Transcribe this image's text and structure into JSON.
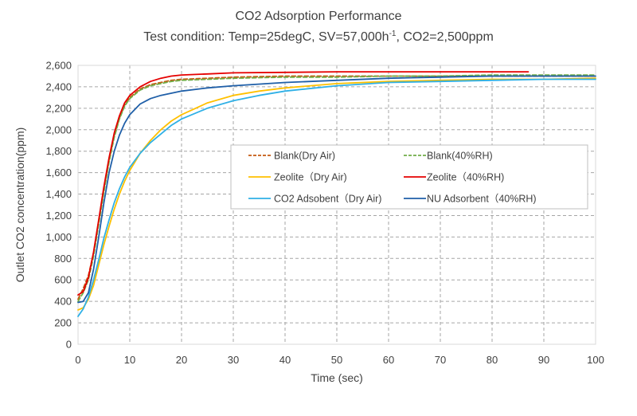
{
  "chart_data": {
    "type": "line",
    "title": "CO2 Adsorption Performance",
    "subtitle_prefix": "Test condition: Temp=25degC, SV=57,000h",
    "subtitle_sup": "-1",
    "subtitle_suffix": ", CO2=2,500ppm",
    "xlabel": "Time (sec)",
    "ylabel": "Outlet CO2 concentration(ppm)",
    "xlim": [
      0,
      100
    ],
    "ylim": [
      0,
      2600
    ],
    "x_ticks": [
      0,
      10,
      20,
      30,
      40,
      50,
      60,
      70,
      80,
      90,
      100
    ],
    "y_ticks": [
      0,
      200,
      400,
      600,
      800,
      1000,
      1200,
      1400,
      1600,
      1800,
      2000,
      2200,
      2400,
      2600
    ],
    "x_tick_labels": [
      "0",
      "10",
      "20",
      "30",
      "40",
      "50",
      "60",
      "70",
      "80",
      "90",
      "100"
    ],
    "y_tick_labels": [
      "0",
      "200",
      "400",
      "600",
      "800",
      "1,000",
      "1,200",
      "1,400",
      "1,600",
      "1,800",
      "2,000",
      "2,200",
      "2,400",
      "2,600"
    ],
    "grid": "dashed",
    "legend_position": "center-right",
    "series": [
      {
        "name": "Blank(Dry Air)",
        "color": "#c55a11",
        "dash": "dashed",
        "points": [
          [
            0,
            420
          ],
          [
            1,
            520
          ],
          [
            2,
            640
          ],
          [
            3,
            850
          ],
          [
            4,
            1150
          ],
          [
            5,
            1450
          ],
          [
            6,
            1720
          ],
          [
            7,
            1950
          ],
          [
            8,
            2110
          ],
          [
            9,
            2230
          ],
          [
            10,
            2300
          ],
          [
            12,
            2380
          ],
          [
            14,
            2420
          ],
          [
            16,
            2440
          ],
          [
            18,
            2460
          ],
          [
            20,
            2470
          ],
          [
            25,
            2480
          ],
          [
            30,
            2490
          ],
          [
            40,
            2500
          ],
          [
            50,
            2500
          ],
          [
            60,
            2500
          ],
          [
            70,
            2500
          ],
          [
            80,
            2500
          ],
          [
            90,
            2500
          ],
          [
            100,
            2500
          ]
        ]
      },
      {
        "name": "Blank(40%RH)",
        "color": "#70ad47",
        "dash": "dashed",
        "points": [
          [
            0,
            400
          ],
          [
            1,
            480
          ],
          [
            2,
            600
          ],
          [
            3,
            820
          ],
          [
            4,
            1120
          ],
          [
            5,
            1420
          ],
          [
            6,
            1700
          ],
          [
            7,
            1930
          ],
          [
            8,
            2100
          ],
          [
            9,
            2220
          ],
          [
            10,
            2290
          ],
          [
            12,
            2370
          ],
          [
            14,
            2410
          ],
          [
            16,
            2430
          ],
          [
            18,
            2450
          ],
          [
            20,
            2460
          ],
          [
            25,
            2470
          ],
          [
            30,
            2480
          ],
          [
            40,
            2490
          ],
          [
            50,
            2490
          ],
          [
            60,
            2500
          ],
          [
            70,
            2500
          ],
          [
            80,
            2510
          ],
          [
            90,
            2510
          ],
          [
            100,
            2510
          ]
        ]
      },
      {
        "name": "Zeolite（Dry Air)",
        "color": "#ffc000",
        "dash": "solid",
        "points": [
          [
            0,
            320
          ],
          [
            1,
            340
          ],
          [
            2,
            420
          ],
          [
            3,
            550
          ],
          [
            4,
            740
          ],
          [
            5,
            930
          ],
          [
            6,
            1100
          ],
          [
            7,
            1260
          ],
          [
            8,
            1400
          ],
          [
            9,
            1520
          ],
          [
            10,
            1620
          ],
          [
            12,
            1780
          ],
          [
            14,
            1900
          ],
          [
            16,
            2000
          ],
          [
            18,
            2080
          ],
          [
            20,
            2140
          ],
          [
            25,
            2250
          ],
          [
            30,
            2320
          ],
          [
            35,
            2360
          ],
          [
            40,
            2390
          ],
          [
            50,
            2430
          ],
          [
            60,
            2450
          ],
          [
            70,
            2460
          ],
          [
            80,
            2470
          ],
          [
            90,
            2470
          ],
          [
            100,
            2480
          ]
        ]
      },
      {
        "name": "Zeolite（40%RH)",
        "color": "#e50000",
        "dash": "solid",
        "points": [
          [
            0,
            460
          ],
          [
            1,
            490
          ],
          [
            2,
            620
          ],
          [
            3,
            860
          ],
          [
            4,
            1160
          ],
          [
            5,
            1470
          ],
          [
            6,
            1740
          ],
          [
            7,
            1970
          ],
          [
            8,
            2130
          ],
          [
            9,
            2250
          ],
          [
            10,
            2320
          ],
          [
            12,
            2400
          ],
          [
            14,
            2450
          ],
          [
            16,
            2480
          ],
          [
            18,
            2500
          ],
          [
            20,
            2510
          ],
          [
            25,
            2520
          ],
          [
            30,
            2530
          ],
          [
            40,
            2535
          ],
          [
            50,
            2540
          ],
          [
            60,
            2540
          ],
          [
            70,
            2540
          ],
          [
            80,
            2540
          ],
          [
            87,
            2540
          ]
        ]
      },
      {
        "name": "CO2 Adsobent（Dry Air)",
        "color": "#2fb0e6",
        "dash": "solid",
        "points": [
          [
            0,
            260
          ],
          [
            1,
            330
          ],
          [
            2,
            440
          ],
          [
            3,
            600
          ],
          [
            4,
            790
          ],
          [
            5,
            990
          ],
          [
            6,
            1160
          ],
          [
            7,
            1320
          ],
          [
            8,
            1450
          ],
          [
            9,
            1560
          ],
          [
            10,
            1650
          ],
          [
            12,
            1780
          ],
          [
            14,
            1880
          ],
          [
            16,
            1960
          ],
          [
            18,
            2040
          ],
          [
            20,
            2100
          ],
          [
            25,
            2200
          ],
          [
            30,
            2270
          ],
          [
            35,
            2320
          ],
          [
            40,
            2360
          ],
          [
            50,
            2410
          ],
          [
            60,
            2440
          ],
          [
            70,
            2450
          ],
          [
            80,
            2460
          ],
          [
            90,
            2470
          ],
          [
            100,
            2470
          ]
        ]
      },
      {
        "name": "NU Adsorbent（40%RH)",
        "color": "#1f5fa8",
        "dash": "solid",
        "points": [
          [
            0,
            390
          ],
          [
            1,
            400
          ],
          [
            2,
            480
          ],
          [
            3,
            700
          ],
          [
            4,
            1000
          ],
          [
            5,
            1320
          ],
          [
            6,
            1600
          ],
          [
            7,
            1800
          ],
          [
            8,
            1950
          ],
          [
            9,
            2060
          ],
          [
            10,
            2140
          ],
          [
            12,
            2240
          ],
          [
            14,
            2290
          ],
          [
            16,
            2320
          ],
          [
            18,
            2340
          ],
          [
            20,
            2360
          ],
          [
            25,
            2390
          ],
          [
            30,
            2410
          ],
          [
            40,
            2440
          ],
          [
            50,
            2460
          ],
          [
            60,
            2480
          ],
          [
            70,
            2490
          ],
          [
            80,
            2500
          ],
          [
            90,
            2500
          ],
          [
            100,
            2500
          ]
        ]
      }
    ]
  }
}
